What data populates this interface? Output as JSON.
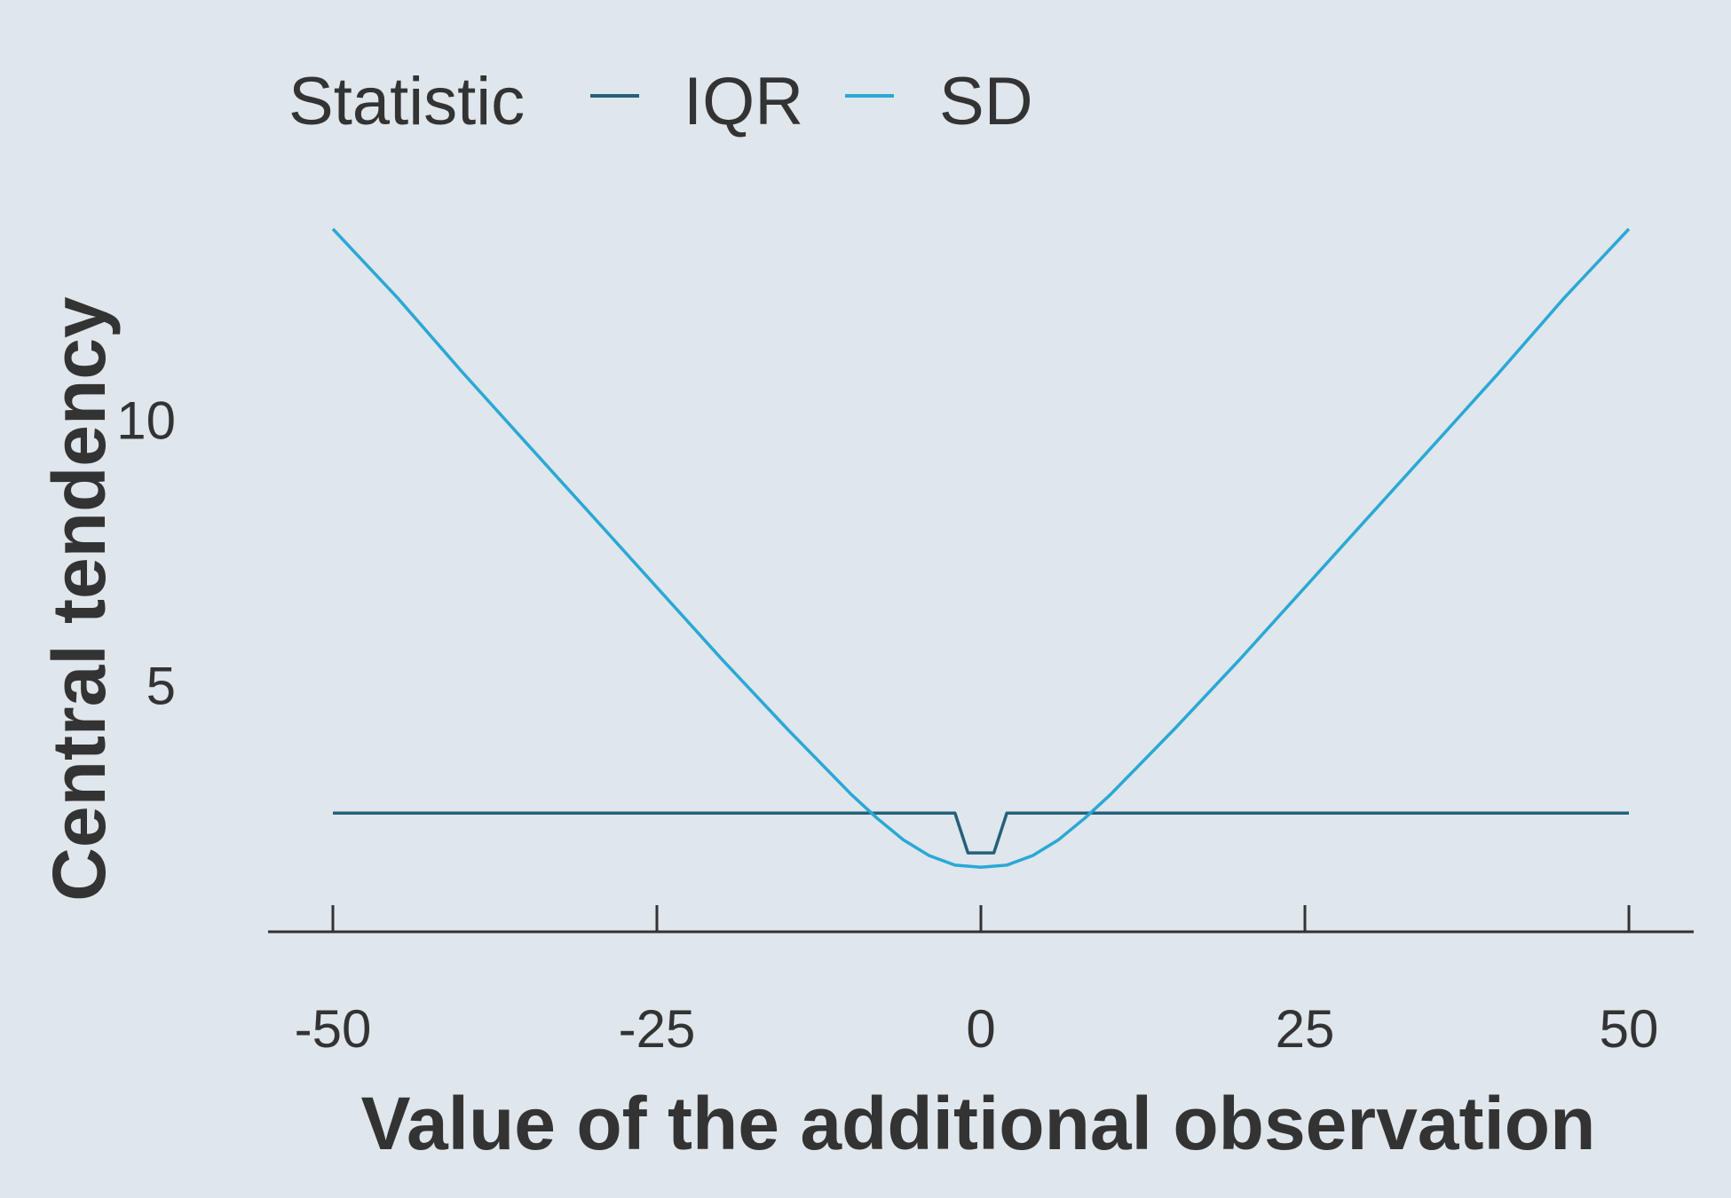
{
  "chart_data": {
    "type": "line",
    "title": "",
    "xlabel": "Value of the additional observation",
    "ylabel": "Central tendency",
    "xlim": [
      -50,
      50
    ],
    "ylim": [
      1,
      13.6
    ],
    "x_ticks": [
      -50,
      -25,
      0,
      25,
      50
    ],
    "x_tick_labels": [
      "-50",
      "-25",
      "0",
      "25",
      "50"
    ],
    "y_ticks": [
      5,
      10
    ],
    "y_tick_labels": [
      "5",
      "10"
    ],
    "grid": false,
    "legend": {
      "title": "Statistic",
      "position": "top-left",
      "entries": [
        "IQR",
        "SD"
      ]
    },
    "series": [
      {
        "name": "IQR",
        "color": "#24617a",
        "x": [
          -50,
          -2,
          -1,
          1,
          2,
          50
        ],
        "y": [
          2.6,
          2.6,
          1.85,
          1.85,
          2.6,
          2.6
        ]
      },
      {
        "name": "SD",
        "color": "#2aa8d6",
        "x": [
          -50,
          -45,
          -40,
          -35,
          -30,
          -25,
          -20,
          -15,
          -10,
          -8,
          -6,
          -4,
          -2,
          0,
          2,
          4,
          6,
          8,
          10,
          15,
          20,
          25,
          30,
          35,
          40,
          45,
          50
        ],
        "y": [
          13.6,
          12.3,
          10.9,
          9.55,
          8.2,
          6.85,
          5.5,
          4.2,
          2.95,
          2.5,
          2.1,
          1.8,
          1.62,
          1.58,
          1.62,
          1.8,
          2.1,
          2.5,
          2.95,
          4.2,
          5.5,
          6.85,
          8.2,
          9.55,
          10.9,
          12.3,
          13.6
        ]
      }
    ]
  }
}
